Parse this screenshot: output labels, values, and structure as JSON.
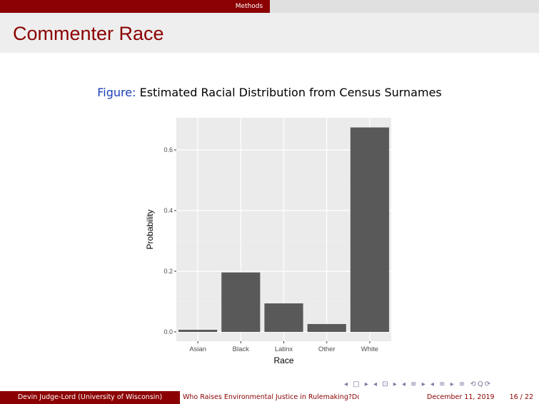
{
  "header": {
    "section": "Methods"
  },
  "slide": {
    "title": "Commenter Race",
    "figure_label": "Figure:",
    "figure_caption": "Estimated Racial Distribution from Census Surnames"
  },
  "chart_data": {
    "type": "bar",
    "xlabel": "Race",
    "ylabel": "Probability",
    "categories": [
      "Asian",
      "Black",
      "Latinx",
      "Other",
      "White"
    ],
    "values": [
      0.007,
      0.196,
      0.094,
      0.026,
      0.674
    ],
    "ylim": [
      0,
      0.7
    ],
    "yticks": [
      0.0,
      0.2,
      0.4,
      0.6
    ],
    "ytick_labels": [
      "0.0",
      "0.2",
      "0.4",
      "0.6"
    ],
    "grid": true,
    "bar_color": "#595959",
    "panel_color": "#ebebeb"
  },
  "footer": {
    "author": "Devin Judge-Lord  (University of Wisconsin)",
    "short_title": "Who Raises Environmental Justice in Rulemaking?Do .",
    "date": "December 11, 2019",
    "page": "16 / 22"
  },
  "nav_symbols": "◂ □ ▸ ◂ ⊡ ▸ ◂ ≡ ▸ ◂ ≡ ▸  ≡  ⟲Q⟳",
  "colors": {
    "accent": "#8b0000",
    "link": "#1b3fb8"
  }
}
